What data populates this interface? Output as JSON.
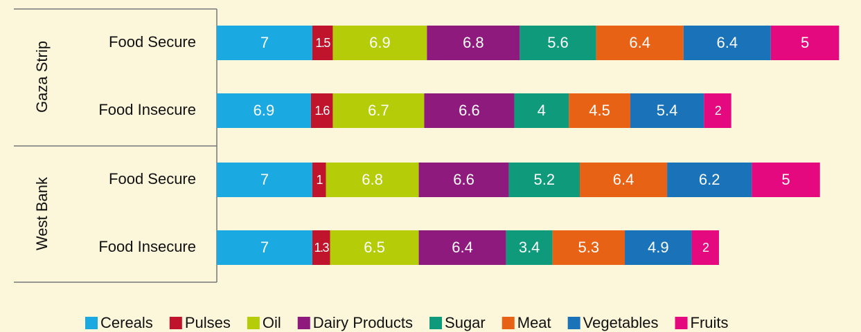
{
  "chart_data": {
    "type": "stacked-barh",
    "groups": [
      {
        "name": "Gaza Strip",
        "categories": [
          "Food Secure",
          "Food Insecure"
        ]
      },
      {
        "name": "West Bank",
        "categories": [
          "Food Secure",
          "Food Insecure"
        ]
      }
    ],
    "series": [
      {
        "name": "Cereals",
        "color": "#1ba9e1",
        "values": [
          7,
          6.9,
          7,
          7
        ]
      },
      {
        "name": "Pulses",
        "color": "#c0142c",
        "values": [
          1.5,
          1.6,
          1,
          1.3
        ]
      },
      {
        "name": "Oil",
        "color": "#b5cc08",
        "values": [
          6.9,
          6.7,
          6.8,
          6.5
        ]
      },
      {
        "name": "Dairy Products",
        "color": "#8e1a7e",
        "values": [
          6.8,
          6.6,
          6.6,
          6.4
        ]
      },
      {
        "name": "Sugar",
        "color": "#0f9a7c",
        "values": [
          5.6,
          4,
          5.2,
          3.4
        ]
      },
      {
        "name": "Meat",
        "color": "#e86215",
        "values": [
          6.4,
          4.5,
          6.4,
          5.3
        ]
      },
      {
        "name": "Vegetables",
        "color": "#1a72b8",
        "values": [
          6.4,
          5.4,
          6.2,
          4.9
        ]
      },
      {
        "name": "Fruits",
        "color": "#e5097f",
        "values": [
          5,
          2,
          5,
          2
        ]
      }
    ]
  }
}
